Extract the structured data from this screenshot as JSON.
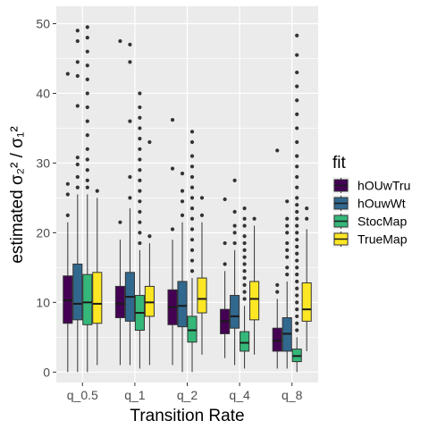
{
  "chart_data": {
    "type": "boxplot",
    "xlabel": "Transition Rate",
    "ylabel_prefix": "estimated ",
    "ylabel_math": "σ₂² / σ₁²",
    "ylim": [
      -1.5,
      52.5
    ],
    "yticks": [
      0,
      10,
      20,
      30,
      40,
      50
    ],
    "grid": true,
    "legend_position": "right",
    "categories": [
      "q_0.5",
      "q_1",
      "q_2",
      "q_4",
      "q_8"
    ],
    "legend": {
      "title": "fit",
      "entries": [
        {
          "name": "hOUwTru",
          "color": "#440154"
        },
        {
          "name": "hOuwWt",
          "color": "#31688E"
        },
        {
          "name": "StocMap",
          "color": "#35B779"
        },
        {
          "name": "TrueMap",
          "color": "#FDE725"
        }
      ]
    },
    "series": [
      {
        "name": "hOUwTru",
        "color": "#440154",
        "boxes": [
          {
            "whisker_low": 0.0,
            "q1": 7.0,
            "median": 10.3,
            "q3": 13.8,
            "whisker_high": 21.5,
            "outliers": [
              22.5,
              25.5,
              27,
              42.8
            ]
          },
          {
            "whisker_low": 1.0,
            "q1": 7.8,
            "median": 9.8,
            "q3": 12.3,
            "whisker_high": 19.0,
            "outliers": [
              21.5,
              47.5
            ]
          },
          {
            "whisker_low": 1.0,
            "q1": 6.8,
            "median": 9.3,
            "q3": 11.8,
            "whisker_high": 19.0,
            "outliers": [
              20.5,
              29.2,
              36.2
            ]
          },
          {
            "whisker_low": 2.0,
            "q1": 5.5,
            "median": 7.3,
            "q3": 9.0,
            "whisker_high": 14.5,
            "outliers": [
              15.5,
              18.5,
              24.8
            ]
          },
          {
            "whisker_low": 0.5,
            "q1": 3.0,
            "median": 4.5,
            "q3": 6.3,
            "whisker_high": 10.5,
            "outliers": [
              11.5,
              12.5,
              31.8
            ]
          }
        ]
      },
      {
        "name": "hOuwWt",
        "color": "#31688E",
        "boxes": [
          {
            "whisker_low": 0.0,
            "q1": 7.5,
            "median": 9.8,
            "q3": 15.5,
            "whisker_high": 25.5,
            "outliers": [
              26.5,
              28,
              29.8,
              30.8,
              38.2,
              42.5,
              44.5,
              47.5,
              49
            ]
          },
          {
            "whisker_low": 1.0,
            "q1": 7.3,
            "median": 10.8,
            "q3": 14.3,
            "whisker_high": 23.5,
            "outliers": [
              25,
              28,
              36,
              44.5,
              47
            ]
          },
          {
            "whisker_low": 0.0,
            "q1": 6.5,
            "median": 9.5,
            "q3": 13.0,
            "whisker_high": 21.5,
            "outliers": [
              22.5,
              24.5,
              26,
              28.5
            ]
          },
          {
            "whisker_low": 1.0,
            "q1": 6.3,
            "median": 8.0,
            "q3": 11.0,
            "whisker_high": 17.5,
            "outliers": [
              18.5,
              20,
              21,
              23,
              27.5
            ]
          },
          {
            "whisker_low": 0.5,
            "q1": 3.0,
            "median": 5.5,
            "q3": 7.8,
            "whisker_high": 13.0,
            "outliers": [
              14,
              15,
              16.5,
              17.5,
              18.5,
              20,
              21,
              22,
              24.5
            ]
          }
        ]
      },
      {
        "name": "StocMap",
        "color": "#35B779",
        "boxes": [
          {
            "whisker_low": 0.0,
            "q1": 6.8,
            "median": 10.0,
            "q3": 14.0,
            "whisker_high": 25.5,
            "outliers": [
              26.5,
              27.5,
              29,
              30.5,
              32,
              34,
              36,
              38,
              40,
              42,
              44,
              46,
              48,
              49.5
            ]
          },
          {
            "whisker_low": 0.5,
            "q1": 6.0,
            "median": 8.5,
            "q3": 11.0,
            "whisker_high": 17.5,
            "outliers": [
              18.5,
              20,
              21.5,
              23,
              24.5,
              26,
              27.5,
              29,
              30.5,
              32,
              33.5,
              35,
              36.5,
              38,
              40
            ]
          },
          {
            "whisker_low": 0.0,
            "q1": 4.3,
            "median": 6.0,
            "q3": 8.0,
            "whisker_high": 13.5,
            "outliers": [
              14.5,
              16,
              17.5,
              19,
              20.5,
              22,
              23.5,
              25,
              26.5,
              28,
              29.5,
              31,
              33,
              34.5
            ]
          },
          {
            "whisker_low": 0.5,
            "q1": 3.0,
            "median": 4.2,
            "q3": 5.8,
            "whisker_high": 9.5,
            "outliers": [
              10.5,
              11.5,
              12.5,
              13.5,
              14.5,
              15.5,
              16.5,
              17.5,
              18.5,
              19.5,
              21,
              22,
              23.5
            ]
          },
          {
            "whisker_low": 0.0,
            "q1": 1.5,
            "median": 2.3,
            "q3": 3.3,
            "whisker_high": 5.0,
            "outliers": [
              6,
              7,
              8,
              9,
              10,
              11,
              12,
              13,
              14,
              15,
              16,
              17,
              18,
              19,
              20,
              21,
              22,
              23,
              24,
              25,
              26.5,
              28,
              29.5,
              31,
              33,
              35,
              37,
              39,
              41,
              43,
              45.5,
              48.3
            ]
          }
        ]
      },
      {
        "name": "TrueMap",
        "color": "#FDE725",
        "boxes": [
          {
            "whisker_low": 1.0,
            "q1": 7.0,
            "median": 9.8,
            "q3": 14.3,
            "whisker_high": 25.0,
            "outliers": [
              26
            ]
          },
          {
            "whisker_low": 1.0,
            "q1": 8.0,
            "median": 10.0,
            "q3": 12.3,
            "whisker_high": 18.5,
            "outliers": [
              19.5,
              33
            ]
          },
          {
            "whisker_low": 2.5,
            "q1": 8.5,
            "median": 10.5,
            "q3": 13.5,
            "whisker_high": 21.5,
            "outliers": [
              22.5,
              25
            ]
          },
          {
            "whisker_low": 2.5,
            "q1": 7.5,
            "median": 10.5,
            "q3": 13.0,
            "whisker_high": 21.0,
            "outliers": [
              22
            ]
          },
          {
            "whisker_low": 3.0,
            "q1": 7.3,
            "median": 9.0,
            "q3": 12.8,
            "whisker_high": 20.5,
            "outliers": [
              22,
              23.5
            ]
          }
        ]
      }
    ]
  }
}
